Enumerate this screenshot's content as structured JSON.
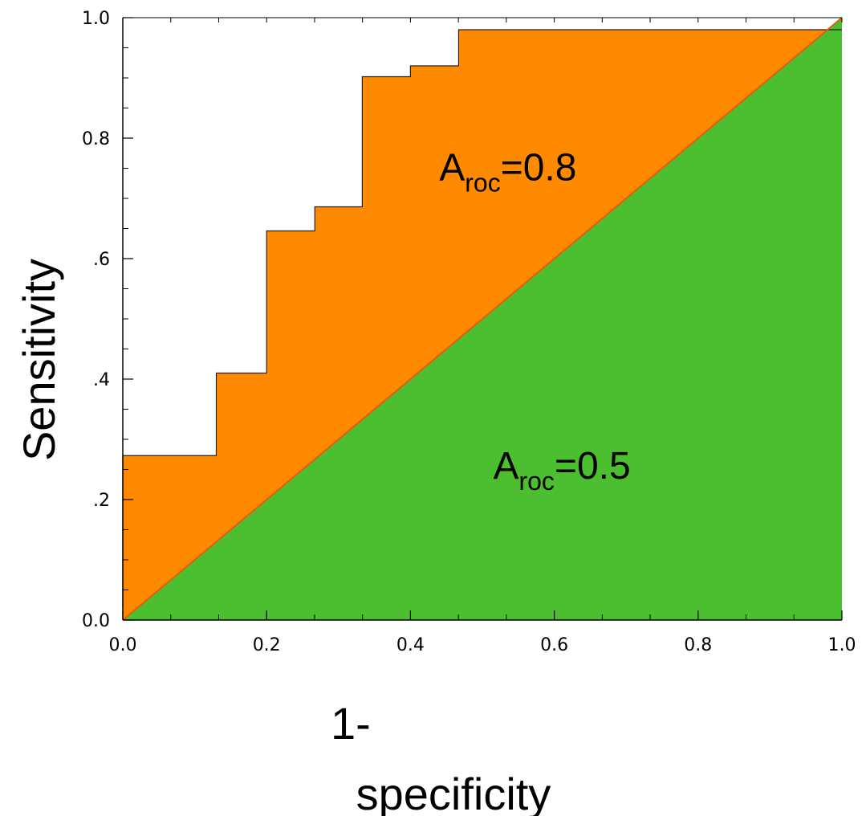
{
  "chart_data": {
    "type": "area",
    "title": "",
    "xlabel_lines": [
      "1-",
      "specificity"
    ],
    "ylabel": "Sensitivity",
    "xlim": [
      0,
      1
    ],
    "ylim": [
      0,
      1
    ],
    "x_ticks": [
      "0.0",
      "0.2",
      "0.4",
      "0.6",
      "0.8",
      "1.0"
    ],
    "y_ticks": [
      "0.0",
      "0.8",
      "1.0"
    ],
    "y_ticks_partially_hidden": [
      ".6",
      ".4",
      ".2"
    ],
    "grid": false,
    "roc_curve": {
      "x": [
        0.0,
        0.0,
        0.13,
        0.13,
        0.2,
        0.2,
        0.267,
        0.267,
        0.333,
        0.333,
        0.4,
        0.4,
        0.467,
        0.467,
        1.0
      ],
      "y": [
        0.02,
        0.273,
        0.273,
        0.41,
        0.41,
        0.646,
        0.646,
        0.686,
        0.686,
        0.902,
        0.902,
        0.92,
        0.92,
        0.98,
        0.98
      ]
    },
    "diagonal": {
      "x": [
        0,
        1
      ],
      "y": [
        0,
        1
      ]
    },
    "annotations": [
      {
        "main": "A",
        "sub": "roc",
        "suffix": "=0.8",
        "x": 0.44,
        "y": 0.73
      },
      {
        "main": "A",
        "sub": "roc",
        "suffix": "=0.5",
        "x": 0.515,
        "y": 0.235
      }
    ],
    "colors": {
      "roc_area": "#ff8a00",
      "chance_area": "#4cbf30",
      "diagonal_line": "#e85a10",
      "curve_line": "#222222"
    }
  }
}
